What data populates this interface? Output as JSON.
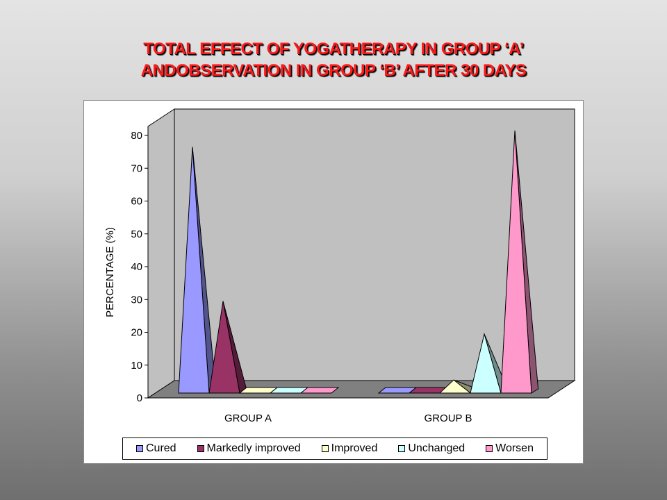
{
  "title_lines": [
    "TOTAL EFFECT OF YOGATHERAPY IN GROUP ‘A’",
    "ANDOBSERVATION IN GROUP ‘B’ AFTER 30 DAYS"
  ],
  "chart_data": {
    "type": "bar",
    "style": "3d-pyramid",
    "categories": [
      "GROUP A",
      "GROUP B"
    ],
    "series": [
      {
        "name": "Cured",
        "color": "#9999ff",
        "values": [
          75,
          0
        ]
      },
      {
        "name": "Markedly improved",
        "color": "#993366",
        "values": [
          28,
          0
        ]
      },
      {
        "name": "Improved",
        "color": "#ffffcc",
        "values": [
          0,
          4
        ]
      },
      {
        "name": "Unchanged",
        "color": "#ccffff",
        "values": [
          0,
          18
        ]
      },
      {
        "name": "Worsen",
        "color": "#ff99cc",
        "values": [
          0,
          80
        ]
      }
    ],
    "ylabel": "PERCENTAGE (%)",
    "xlabel": "",
    "ylim": [
      0,
      80
    ],
    "yticks": [
      "0",
      "10",
      "20",
      "30",
      "40",
      "50",
      "60",
      "70",
      "80"
    ],
    "grid": false,
    "legend": "bottom",
    "wall_color": "#c0c0c0",
    "floor_color": "#808080"
  }
}
